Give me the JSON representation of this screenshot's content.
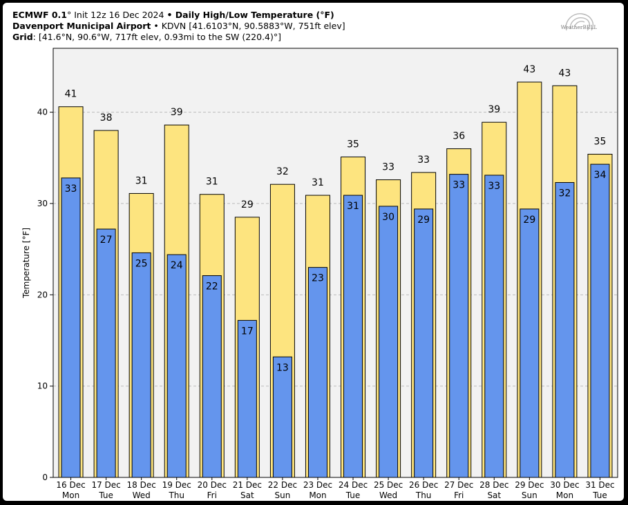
{
  "header": {
    "line1_model": "ECMWF 0.1",
    "line1_deg": "°",
    "line1_init": " Init 12z 16 Dec 2024 ",
    "line1_bullet": "•",
    "line1_title": " Daily High/Low Temperature (°F)",
    "line2_station": "Davenport Municipal Airport",
    "line2_rest": " • KDVN [41.6103°N, 90.5883°W, 751ft elev]",
    "line3_label": "Grid",
    "line3_rest": ": [41.6°N, 90.6°W, 717ft elev, 0.93mi to the SW (220.4)°]"
  },
  "logo": {
    "text": "WeatherBELL",
    "icon": "weatherbell-swirl-logo"
  },
  "colors": {
    "high": "#fde47f",
    "low": "#6495ed",
    "plot_bg": "#f2f2f2",
    "grid": "#bbbbbb"
  },
  "chart_data": {
    "type": "bar",
    "title": "Daily High/Low Temperature (°F)",
    "ylabel": "Temperature [°F]",
    "xlabel": "",
    "ylim": [
      0,
      47
    ],
    "yticks": [
      0,
      10,
      20,
      30,
      40
    ],
    "grid": true,
    "categories": [
      {
        "date": "16 Dec",
        "day": "Mon"
      },
      {
        "date": "17 Dec",
        "day": "Tue"
      },
      {
        "date": "18 Dec",
        "day": "Wed"
      },
      {
        "date": "19 Dec",
        "day": "Thu"
      },
      {
        "date": "20 Dec",
        "day": "Fri"
      },
      {
        "date": "21 Dec",
        "day": "Sat"
      },
      {
        "date": "22 Dec",
        "day": "Sun"
      },
      {
        "date": "23 Dec",
        "day": "Mon"
      },
      {
        "date": "24 Dec",
        "day": "Tue"
      },
      {
        "date": "25 Dec",
        "day": "Wed"
      },
      {
        "date": "26 Dec",
        "day": "Thu"
      },
      {
        "date": "27 Dec",
        "day": "Fri"
      },
      {
        "date": "28 Dec",
        "day": "Sat"
      },
      {
        "date": "29 Dec",
        "day": "Sun"
      },
      {
        "date": "30 Dec",
        "day": "Mon"
      },
      {
        "date": "31 Dec",
        "day": "Tue"
      }
    ],
    "series": [
      {
        "name": "High",
        "values": [
          40.6,
          38.0,
          31.1,
          38.6,
          31.0,
          28.5,
          32.1,
          30.9,
          35.1,
          32.6,
          33.4,
          36.0,
          38.9,
          43.3,
          42.9,
          35.4
        ],
        "labels": [
          "41",
          "38",
          "31",
          "39",
          "31",
          "29",
          "32",
          "31",
          "35",
          "33",
          "33",
          "36",
          "39",
          "43",
          "43",
          "35"
        ]
      },
      {
        "name": "Low",
        "values": [
          32.8,
          27.2,
          24.6,
          24.4,
          22.1,
          17.2,
          13.2,
          23.0,
          30.9,
          29.7,
          29.4,
          33.2,
          33.1,
          29.4,
          32.3,
          34.3
        ],
        "labels": [
          "33",
          "27",
          "25",
          "24",
          "22",
          "17",
          "13",
          "23",
          "31",
          "30",
          "29",
          "33",
          "33",
          "29",
          "32",
          "34"
        ]
      }
    ]
  }
}
